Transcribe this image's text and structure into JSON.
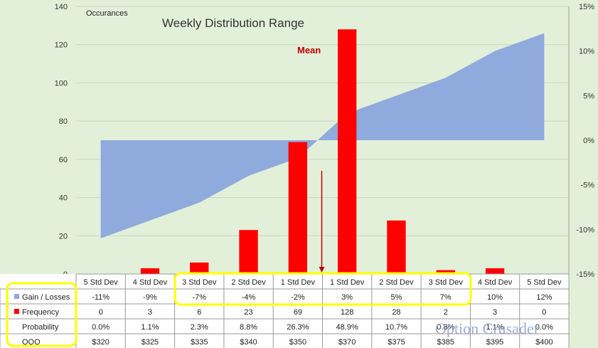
{
  "chart_data": {
    "type": "bar",
    "title": "Weekly Distribution Range",
    "y_left_label": "Occurances",
    "annotation": "Mean",
    "watermark": "Option Crusader",
    "categories": [
      "5 Std Dev",
      "4 Std Dev",
      "3 Std Dev",
      "2 Std Dev",
      "1 Std Dev",
      "1 Std Dev",
      "2 Std Dev",
      "3 Std Dev",
      "4 Std Dev",
      "5 Std Dev"
    ],
    "y_left_range": [
      0,
      140
    ],
    "y_left_ticks": [
      "0",
      "20",
      "40",
      "60",
      "80",
      "100",
      "120",
      "140"
    ],
    "y_right_range": [
      -15,
      15
    ],
    "y_right_ticks": [
      "-15%",
      "-10%",
      "-5%",
      "0%",
      "5%",
      "10%",
      "15%"
    ],
    "grid": "horizontal",
    "series": [
      {
        "name": "Gain / Losses",
        "type": "area",
        "axis": "right",
        "color": "#8FAADC",
        "values": [
          -11,
          -9,
          -7,
          -4,
          -2,
          3,
          5,
          7,
          10,
          12
        ]
      },
      {
        "name": "Frequency",
        "type": "bar",
        "axis": "left",
        "color": "#FF0000",
        "values": [
          0,
          3,
          6,
          23,
          69,
          128,
          28,
          2,
          3,
          0
        ]
      }
    ],
    "table": {
      "rows": [
        {
          "label": "Gain / Losses",
          "swatch": "#8FAADC",
          "cells": [
            "-11%",
            "-9%",
            "-7%",
            "-4%",
            "-2%",
            "3%",
            "5%",
            "7%",
            "10%",
            "12%"
          ]
        },
        {
          "label": "Frequency",
          "swatch": "#FF0000",
          "cells": [
            "0",
            "3",
            "6",
            "23",
            "69",
            "128",
            "28",
            "2",
            "3",
            "0"
          ]
        },
        {
          "label": "Probability",
          "swatch": "",
          "cells": [
            "0.0%",
            "1.1%",
            "2.3%",
            "8.8%",
            "26.3%",
            "48.9%",
            "10.7%",
            "0.8%",
            "1.1%",
            "0.0%"
          ]
        },
        {
          "label": "QQQ",
          "swatch": "",
          "cells": [
            "$320",
            "$325",
            "$335",
            "$340",
            "$350",
            "$370",
            "$375",
            "$385",
            "$395",
            "$400"
          ]
        }
      ]
    },
    "colors": {
      "plot_background": "#E2F0D9",
      "highlight": "#FFFF00",
      "mean_arrow": "#C00000",
      "annotation": "#C00000"
    }
  }
}
